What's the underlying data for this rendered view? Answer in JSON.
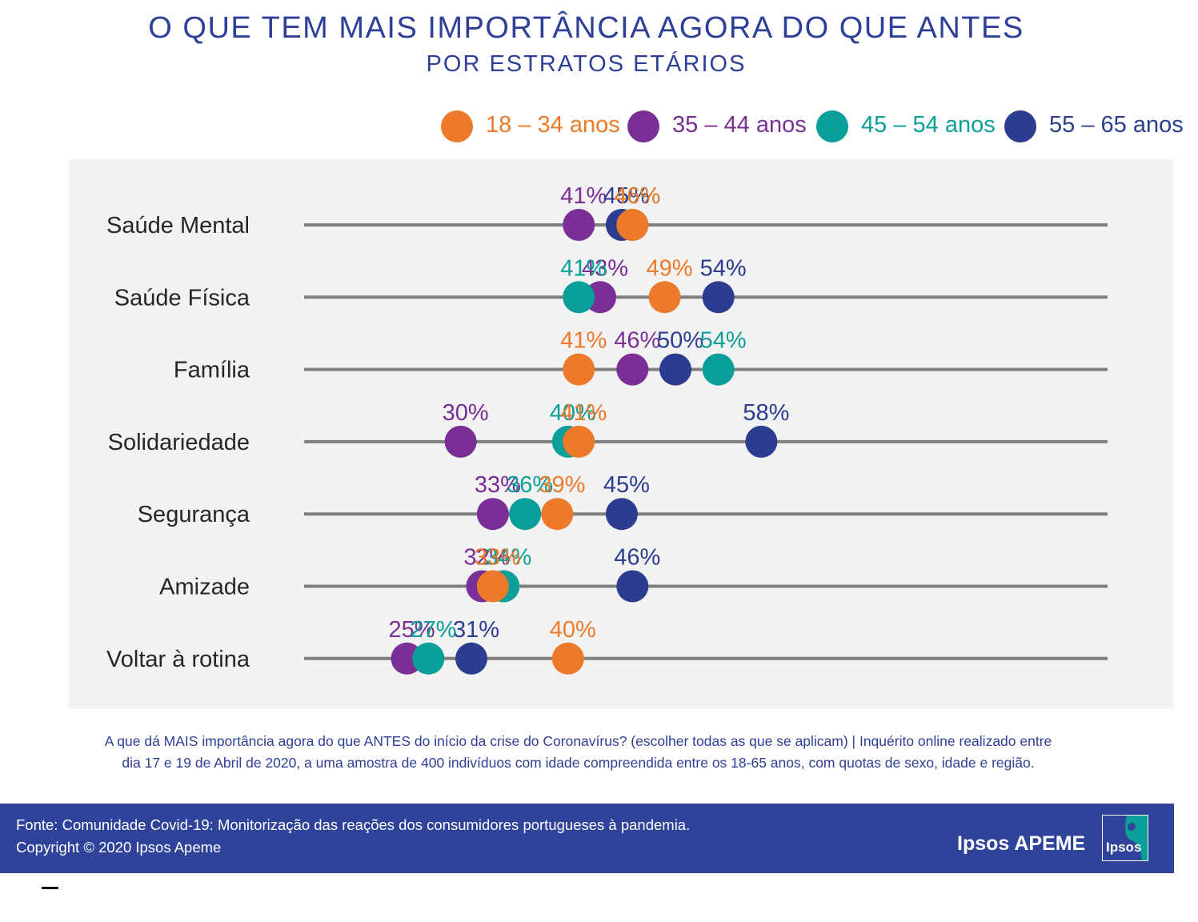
{
  "title": "O QUE TEM MAIS IMPORTÂNCIA AGORA DO QUE ANTES",
  "subtitle": "POR ESTRATOS ETÁRIOS",
  "colors": {
    "series_18_34": "#ec7a2a",
    "series_35_44": "#7a2f96",
    "series_45_54": "#0a9f98",
    "series_55_65": "#2c3c8f",
    "track": "#7f7f7f",
    "panel": "#f2f2f2",
    "title": "#2e3f97",
    "footer": "#2e4399"
  },
  "chart_data": {
    "type": "scatter",
    "title": "O QUE TEM MAIS IMPORTÂNCIA AGORA DO QUE ANTES",
    "subtitle": "POR ESTRATOS ETÁRIOS",
    "categories": [
      "Saúde Mental",
      "Saúde Física",
      "Família",
      "Solidariedade",
      "Segurança",
      "Amizade",
      "Voltar à rotina"
    ],
    "value_unit": "%",
    "xlim": [
      20,
      65
    ],
    "grid": false,
    "legend_position": "top-right",
    "series": [
      {
        "name": "18 – 34 anos",
        "values": [
          46,
          49,
          41,
          41,
          39,
          33,
          40
        ]
      },
      {
        "name": "35 – 44 anos",
        "values": [
          41,
          43,
          46,
          30,
          33,
          32,
          25
        ]
      },
      {
        "name": "45 – 54 anos",
        "values": [
          46,
          41,
          54,
          40,
          36,
          34,
          27
        ]
      },
      {
        "name": "55 – 65 anos",
        "values": [
          45,
          54,
          50,
          58,
          45,
          46,
          31
        ]
      }
    ]
  },
  "footnote": {
    "line1": "A que dá MAIS importância agora do que ANTES do início da crise do Coronavírus? (escolher todas as que se aplicam) |  Inquérito online realizado entre",
    "line2": "dia 17 e 19 de Abril de 2020, a uma amostra de 400 indivíduos com idade compreendida entre os 18-65 anos, com quotas de sexo, idade e região."
  },
  "footer": {
    "source": "Fonte: Comunidade Covid-19: Monitorização das reações dos consumidores portugueses à pandemia.",
    "copyright": "Copyright © 2020 Ipsos Apeme",
    "brand": "Ipsos APEME",
    "logo_text": "Ipsos"
  }
}
